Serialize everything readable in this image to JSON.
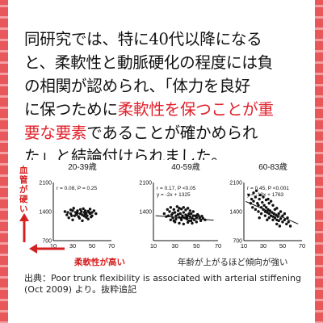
{
  "body_text": {
    "l1": "同研究では、特に40代以降になる",
    "l2": "と、柔軟性と動脈硬化の程度には負",
    "l3": "の相関が認められ、「体力を良好",
    "l4a": "に保つために",
    "l4b": "柔軟性を保つことが重",
    "l5a": "要な要素",
    "l5b": "であることが確かめられ",
    "l6": "た」と結論付けられました。"
  },
  "annotations": {
    "y_axis_note": "血管が硬い",
    "x_axis_note": "柔軟性が高い",
    "trend_note": "年齢が上がるほど傾向が強い"
  },
  "caption": {
    "line1": "出典：Poor trunk flexibility is associated with arterial stiffening",
    "line2": "(Oct 2009) より。抜粋追記"
  },
  "colors": {
    "accent_red": "#e0202b",
    "border": "#e8585a",
    "annotation_red": "#d42020"
  },
  "chart_data": [
    {
      "type": "scatter",
      "title": "20-39歳",
      "stats": "r = 0.08, P = 0.25",
      "xlim": [
        10,
        70
      ],
      "ylim": [
        700,
        2100
      ],
      "x_ticks": [
        10,
        30,
        50,
        70
      ],
      "y_ticks": [
        700,
        1400,
        2100
      ],
      "x_tick_labels": [
        "10",
        "30",
        "50",
        "70"
      ],
      "y_tick_labels": [
        "700",
        "1400",
        "2100"
      ],
      "points": [
        [
          22,
          1400
        ],
        [
          25,
          1380
        ],
        [
          28,
          1350
        ],
        [
          30,
          1420
        ],
        [
          32,
          1300
        ],
        [
          35,
          1360
        ],
        [
          38,
          1450
        ],
        [
          40,
          1320
        ],
        [
          42,
          1380
        ],
        [
          44,
          1260
        ],
        [
          46,
          1410
        ],
        [
          48,
          1350
        ],
        [
          50,
          1300
        ],
        [
          26,
          1250
        ],
        [
          30,
          1200
        ],
        [
          34,
          1330
        ],
        [
          36,
          1280
        ],
        [
          39,
          1400
        ],
        [
          41,
          1470
        ],
        [
          43,
          1340
        ],
        [
          45,
          1300
        ],
        [
          47,
          1380
        ],
        [
          52,
          1420
        ],
        [
          54,
          1350
        ],
        [
          28,
          1440
        ],
        [
          33,
          1380
        ],
        [
          37,
          1240
        ],
        [
          40,
          1180
        ],
        [
          44,
          1360
        ],
        [
          48,
          1460
        ],
        [
          31,
          1480
        ],
        [
          35,
          1420
        ],
        [
          42,
          1290
        ],
        [
          46,
          1220
        ],
        [
          50,
          1380
        ],
        [
          24,
          1320
        ],
        [
          29,
          1300
        ],
        [
          38,
          1350
        ],
        [
          43,
          1420
        ],
        [
          49,
          1270
        ]
      ]
    },
    {
      "type": "scatter",
      "title": "40-59歳",
      "stats": "r = 0.17, P <0.05",
      "equation": "y = -2x + 1325",
      "fit": [
        -2,
        1325
      ],
      "xlim": [
        10,
        70
      ],
      "ylim": [
        700,
        2100
      ],
      "x_ticks": [
        10,
        30,
        50,
        70
      ],
      "y_ticks": [
        700,
        1400,
        2100
      ],
      "x_tick_labels": [
        "10",
        "30",
        "50",
        "70"
      ],
      "y_tick_labels": [
        "",
        "1400",
        "2100"
      ],
      "points": [
        [
          20,
          1350
        ],
        [
          22,
          1280
        ],
        [
          25,
          1400
        ],
        [
          27,
          1320
        ],
        [
          28,
          1250
        ],
        [
          30,
          1380
        ],
        [
          31,
          1300
        ],
        [
          33,
          1420
        ],
        [
          34,
          1260
        ],
        [
          35,
          1350
        ],
        [
          36,
          1200
        ],
        [
          37,
          1300
        ],
        [
          38,
          1380
        ],
        [
          39,
          1250
        ],
        [
          40,
          1320
        ],
        [
          41,
          1220
        ],
        [
          42,
          1300
        ],
        [
          43,
          1180
        ],
        [
          44,
          1280
        ],
        [
          45,
          1350
        ],
        [
          46,
          1240
        ],
        [
          47,
          1300
        ],
        [
          48,
          1200
        ],
        [
          50,
          1260
        ],
        [
          52,
          1300
        ],
        [
          54,
          1180
        ],
        [
          56,
          1240
        ],
        [
          23,
          1450
        ],
        [
          26,
          1500
        ],
        [
          29,
          1450
        ],
        [
          32,
          1520
        ],
        [
          34,
          1480
        ],
        [
          36,
          1460
        ],
        [
          38,
          1500
        ],
        [
          40,
          1440
        ],
        [
          42,
          1480
        ],
        [
          44,
          1420
        ],
        [
          30,
          1150
        ],
        [
          34,
          1120
        ],
        [
          38,
          1100
        ],
        [
          42,
          1140
        ],
        [
          46,
          1120
        ],
        [
          50,
          1150
        ],
        [
          26,
          1200
        ],
        [
          31,
          1220
        ],
        [
          36,
          1240
        ],
        [
          41,
          1260
        ],
        [
          45,
          1180
        ],
        [
          49,
          1300
        ],
        [
          53,
          1250
        ],
        [
          58,
          1200
        ],
        [
          24,
          1300
        ],
        [
          28,
          1360
        ],
        [
          33,
          1330
        ],
        [
          37,
          1270
        ],
        [
          43,
          1350
        ],
        [
          47,
          1400
        ],
        [
          51,
          1330
        ],
        [
          55,
          1290
        ],
        [
          29,
          1180
        ]
      ]
    },
    {
      "type": "scatter",
      "title": "60-83歳",
      "stats": "r = 0.45, P <0.001",
      "equation": "y = -10x + 1763",
      "fit": [
        -10,
        1763
      ],
      "xlim": [
        10,
        70
      ],
      "ylim": [
        700,
        2100
      ],
      "x_ticks": [
        10,
        30,
        50,
        70
      ],
      "y_ticks": [
        700,
        1400,
        2100
      ],
      "x_tick_labels": [
        "10",
        "30",
        "50",
        "70"
      ],
      "y_tick_labels": [
        "700",
        "1400",
        "2100"
      ],
      "points": [
        [
          15,
          1800
        ],
        [
          18,
          1700
        ],
        [
          20,
          1650
        ],
        [
          22,
          1750
        ],
        [
          24,
          1600
        ],
        [
          25,
          1550
        ],
        [
          26,
          1700
        ],
        [
          28,
          1500
        ],
        [
          29,
          1620
        ],
        [
          30,
          1450
        ],
        [
          31,
          1550
        ],
        [
          32,
          1400
        ],
        [
          33,
          1500
        ],
        [
          34,
          1380
        ],
        [
          35,
          1450
        ],
        [
          36,
          1350
        ],
        [
          37,
          1420
        ],
        [
          38,
          1300
        ],
        [
          39,
          1380
        ],
        [
          40,
          1280
        ],
        [
          41,
          1350
        ],
        [
          42,
          1250
        ],
        [
          43,
          1320
        ],
        [
          44,
          1200
        ],
        [
          45,
          1280
        ],
        [
          46,
          1180
        ],
        [
          48,
          1230
        ],
        [
          50,
          1150
        ],
        [
          52,
          1200
        ],
        [
          54,
          1100
        ],
        [
          56,
          1150
        ],
        [
          58,
          1050
        ],
        [
          20,
          1850
        ],
        [
          23,
          1900
        ],
        [
          27,
          1800
        ],
        [
          30,
          1750
        ],
        [
          33,
          1680
        ],
        [
          36,
          1600
        ],
        [
          40,
          1550
        ],
        [
          44,
          1480
        ],
        [
          48,
          1400
        ],
        [
          52,
          1350
        ],
        [
          25,
          1400
        ],
        [
          28,
          1350
        ],
        [
          32,
          1300
        ],
        [
          36,
          1250
        ],
        [
          40,
          1200
        ],
        [
          44,
          1100
        ],
        [
          19,
          1500
        ],
        [
          22,
          1450
        ],
        [
          35,
          1700
        ],
        [
          38,
          1650
        ],
        [
          42,
          1450
        ],
        [
          46,
          1350
        ],
        [
          50,
          1300
        ],
        [
          55,
          1250
        ],
        [
          17,
          1600
        ],
        [
          26,
          1250
        ],
        [
          34,
          1200
        ],
        [
          47,
          1050
        ]
      ]
    }
  ]
}
